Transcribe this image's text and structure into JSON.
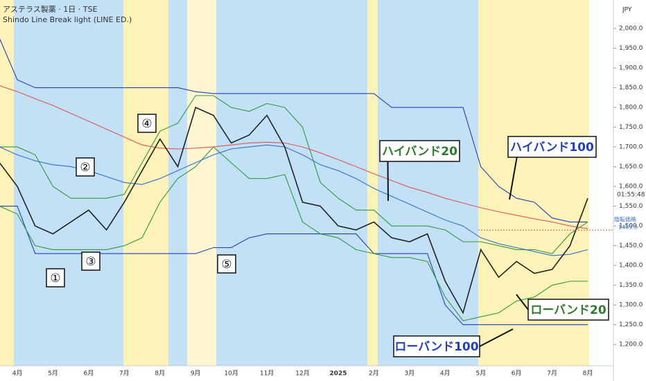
{
  "chart_data": {
    "type": "line",
    "title": "アステラス製薬 · 1日 · TSE",
    "subtitle": "Shindo Line Break light (LINE ED.)",
    "currency": "JPY",
    "clock": "01:55:48",
    "price_tag": {
      "label": "陰転価格",
      "value": 1489.5
    },
    "categories": [
      null,
      "4月",
      null,
      "5月",
      null,
      "6月",
      null,
      "7月",
      null,
      "8月",
      null,
      "9月",
      null,
      "10月",
      null,
      "11月",
      null,
      "12月",
      null,
      "2025",
      null,
      "2月",
      null,
      "3月",
      null,
      "4月",
      null,
      "5月",
      null,
      "6月",
      null,
      "7月",
      null,
      "8月"
    ],
    "series": [
      {
        "color": "#1f3fbf",
        "name": "ハイバンド100",
        "values": [
          1975,
          1870,
          1850,
          1850,
          1850,
          1850,
          1850,
          1850,
          1850,
          1850,
          1850,
          1840,
          1835,
          1835,
          1835,
          1835,
          1835,
          1835,
          1835,
          1835,
          1835,
          1835,
          1800,
          1800,
          1800,
          1800,
          1800,
          1650,
          1600,
          1570,
          1560,
          1520,
          1510,
          1510
        ]
      },
      {
        "color": "#1f3fbf",
        "name": "ローバンド100",
        "values": [
          1550,
          1550,
          1430,
          1430,
          1430,
          1430,
          1430,
          1430,
          1430,
          1430,
          1430,
          1430,
          1445,
          1445,
          1470,
          1480,
          1480,
          1480,
          1480,
          1480,
          1480,
          1430,
          1430,
          1430,
          1430,
          1300,
          1250,
          1250,
          1250,
          1250,
          1250,
          1250,
          1250,
          1250
        ]
      },
      {
        "color": "#2e9a3a",
        "name": "ハイバンド20",
        "values": [
          1700,
          1700,
          1680,
          1600,
          1570,
          1570,
          1570,
          1580,
          1660,
          1740,
          1760,
          1830,
          1830,
          1800,
          1790,
          1810,
          1800,
          1750,
          1610,
          1570,
          1540,
          1540,
          1500,
          1500,
          1500,
          1490,
          1460,
          1460,
          1450,
          1440,
          1440,
          1430,
          1480,
          1510
        ]
      },
      {
        "color": "#2e9a3a",
        "name": "ローバンド20",
        "values": [
          1550,
          1530,
          1450,
          1440,
          1440,
          1440,
          1440,
          1450,
          1470,
          1560,
          1620,
          1650,
          1700,
          1660,
          1620,
          1620,
          1630,
          1510,
          1480,
          1470,
          1440,
          1430,
          1420,
          1420,
          1410,
          1320,
          1260,
          1270,
          1280,
          1310,
          1320,
          1350,
          1360,
          1360
        ]
      },
      {
        "color": "#e05555",
        "values": [
          1855,
          1840,
          1822,
          1805,
          1785,
          1765,
          1745,
          1725,
          1705,
          1697,
          1695,
          1697,
          1700,
          1705,
          1710,
          1712,
          1710,
          1700,
          1685,
          1668,
          1650,
          1632,
          1615,
          1598,
          1585,
          1570,
          1558,
          1546,
          1536,
          1527,
          1518,
          1510,
          1500,
          1493
        ]
      },
      {
        "color": "#2f6fd0",
        "values": [
          1700,
          1680,
          1665,
          1655,
          1650,
          1640,
          1625,
          1610,
          1605,
          1620,
          1640,
          1660,
          1680,
          1695,
          1700,
          1705,
          1700,
          1680,
          1655,
          1640,
          1620,
          1595,
          1575,
          1555,
          1535,
          1515,
          1500,
          1470,
          1455,
          1445,
          1435,
          1425,
          1428,
          1440
        ]
      },
      {
        "color": "#222222",
        "values": [
          1660,
          1600,
          1500,
          1480,
          1510,
          1540,
          1490,
          1560,
          1640,
          1720,
          1650,
          1800,
          1780,
          1710,
          1730,
          1780,
          1700,
          1560,
          1550,
          1500,
          1490,
          1510,
          1470,
          1460,
          1480,
          1360,
          1280,
          1440,
          1370,
          1410,
          1380,
          1390,
          1450,
          1570
        ]
      }
    ],
    "annotations": [
      "①",
      "②",
      "③",
      "④",
      "⑤"
    ],
    "ylim": [
      1146,
      2072
    ],
    "yticks": [
      {
        "value": 1200,
        "label": "1,200.0"
      },
      {
        "value": 1250,
        "label": "1,250.0"
      },
      {
        "value": 1300,
        "label": "1,300.0"
      },
      {
        "value": 1350,
        "label": "1,350.0"
      },
      {
        "value": 1400,
        "label": "1,400.0"
      },
      {
        "value": 1450,
        "label": "1,450.0"
      },
      {
        "value": 1500,
        "label": "1,500.0"
      },
      {
        "value": 1550,
        "label": "1,550.0"
      },
      {
        "value": 1600,
        "label": "1,600.0"
      },
      {
        "value": 1650,
        "label": "1,650.0"
      },
      {
        "value": 1700,
        "label": "1,700.0"
      },
      {
        "value": 1750,
        "label": "1,750.0"
      },
      {
        "value": 1800,
        "label": "1,800.0"
      },
      {
        "value": 1850,
        "label": "1,850.0"
      },
      {
        "value": 1900,
        "label": "1,900.0"
      },
      {
        "value": 1950,
        "label": "1,950.0"
      },
      {
        "value": 2000,
        "label": "2,000.0"
      }
    ]
  }
}
